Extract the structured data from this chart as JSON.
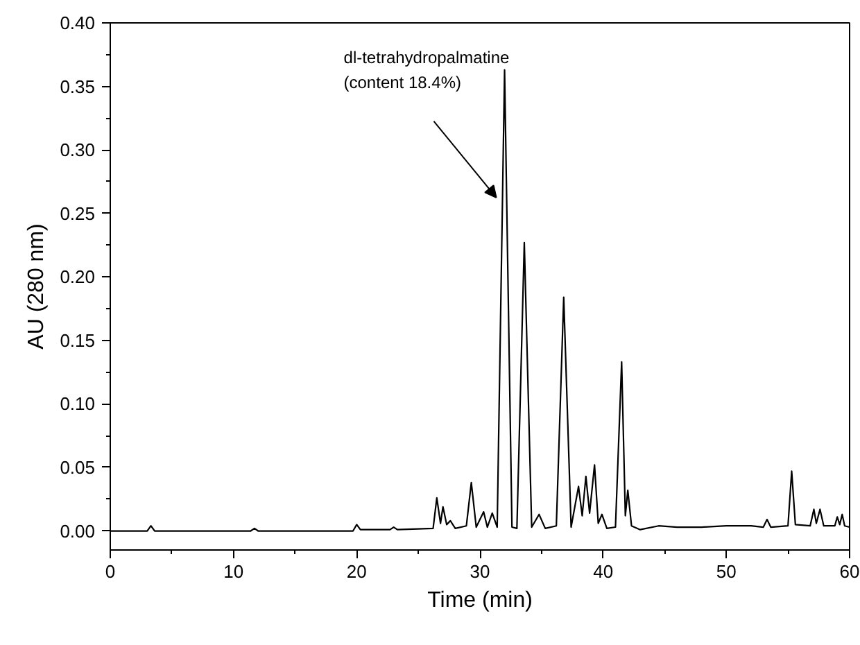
{
  "chart_data": {
    "type": "line",
    "xlabel": "Time (min)",
    "ylabel": "AU (280 nm)",
    "xlim": [
      0,
      60
    ],
    "ylim": [
      -0.015,
      0.4
    ],
    "xticks": [
      0,
      10,
      20,
      30,
      40,
      50,
      60
    ],
    "yticks": [
      {
        "value": 0,
        "label": "0.00"
      },
      {
        "value": 0.05,
        "label": "0.05"
      },
      {
        "value": 0.1,
        "label": "0.10"
      },
      {
        "value": 0.15,
        "label": "0.15"
      },
      {
        "value": 0.2,
        "label": "0.20"
      },
      {
        "value": 0.25,
        "label": "0.25"
      },
      {
        "value": 0.3,
        "label": "0.30"
      },
      {
        "value": 0.35,
        "label": "0.35"
      },
      {
        "value": 0.4,
        "label": "0.40"
      }
    ],
    "line_style": "solid",
    "annotations": [
      {
        "text": "dl-tetrahydropalmatine\n(content 18.4%)",
        "x": 32.0,
        "y": 0.363
      }
    ],
    "series": [
      {
        "color": "#000000",
        "x": [
          0,
          3.0,
          3.3,
          3.6,
          11.4,
          11.7,
          12.0,
          19.7,
          20.0,
          20.3,
          22.7,
          23.0,
          23.3,
          26.2,
          26.5,
          26.8,
          27.0,
          27.3,
          27.6,
          28.0,
          28.9,
          29.3,
          29.7,
          30.3,
          30.6,
          31.0,
          31.4,
          32.0,
          32.6,
          33.0,
          33.6,
          34.2,
          34.8,
          35.3,
          36.2,
          36.8,
          37.4,
          38.0,
          38.3,
          38.6,
          38.9,
          39.3,
          39.6,
          39.9,
          40.3,
          41.0,
          41.5,
          41.8,
          42.0,
          42.3,
          43,
          44.5,
          46,
          48,
          50,
          52,
          53.0,
          53.3,
          53.6,
          55.0,
          55.3,
          55.6,
          56.8,
          57.1,
          57.3,
          57.6,
          57.9,
          58.8,
          59.0,
          59.2,
          59.4,
          59.6,
          60
        ],
        "values": [
          0.0,
          0.0,
          0.004,
          0.0,
          0.0,
          0.002,
          0.0,
          0.0,
          0.005,
          0.001,
          0.001,
          0.003,
          0.001,
          0.002,
          0.026,
          0.006,
          0.019,
          0.005,
          0.008,
          0.002,
          0.004,
          0.038,
          0.003,
          0.015,
          0.003,
          0.014,
          0.003,
          0.363,
          0.003,
          0.002,
          0.227,
          0.003,
          0.013,
          0.002,
          0.004,
          0.184,
          0.003,
          0.035,
          0.012,
          0.043,
          0.014,
          0.052,
          0.006,
          0.013,
          0.002,
          0.003,
          0.133,
          0.012,
          0.032,
          0.004,
          0.001,
          0.004,
          0.003,
          0.003,
          0.004,
          0.004,
          0.003,
          0.009,
          0.003,
          0.004,
          0.047,
          0.005,
          0.004,
          0.017,
          0.006,
          0.017,
          0.004,
          0.004,
          0.011,
          0.005,
          0.013,
          0.004,
          0.003
        ]
      }
    ]
  }
}
